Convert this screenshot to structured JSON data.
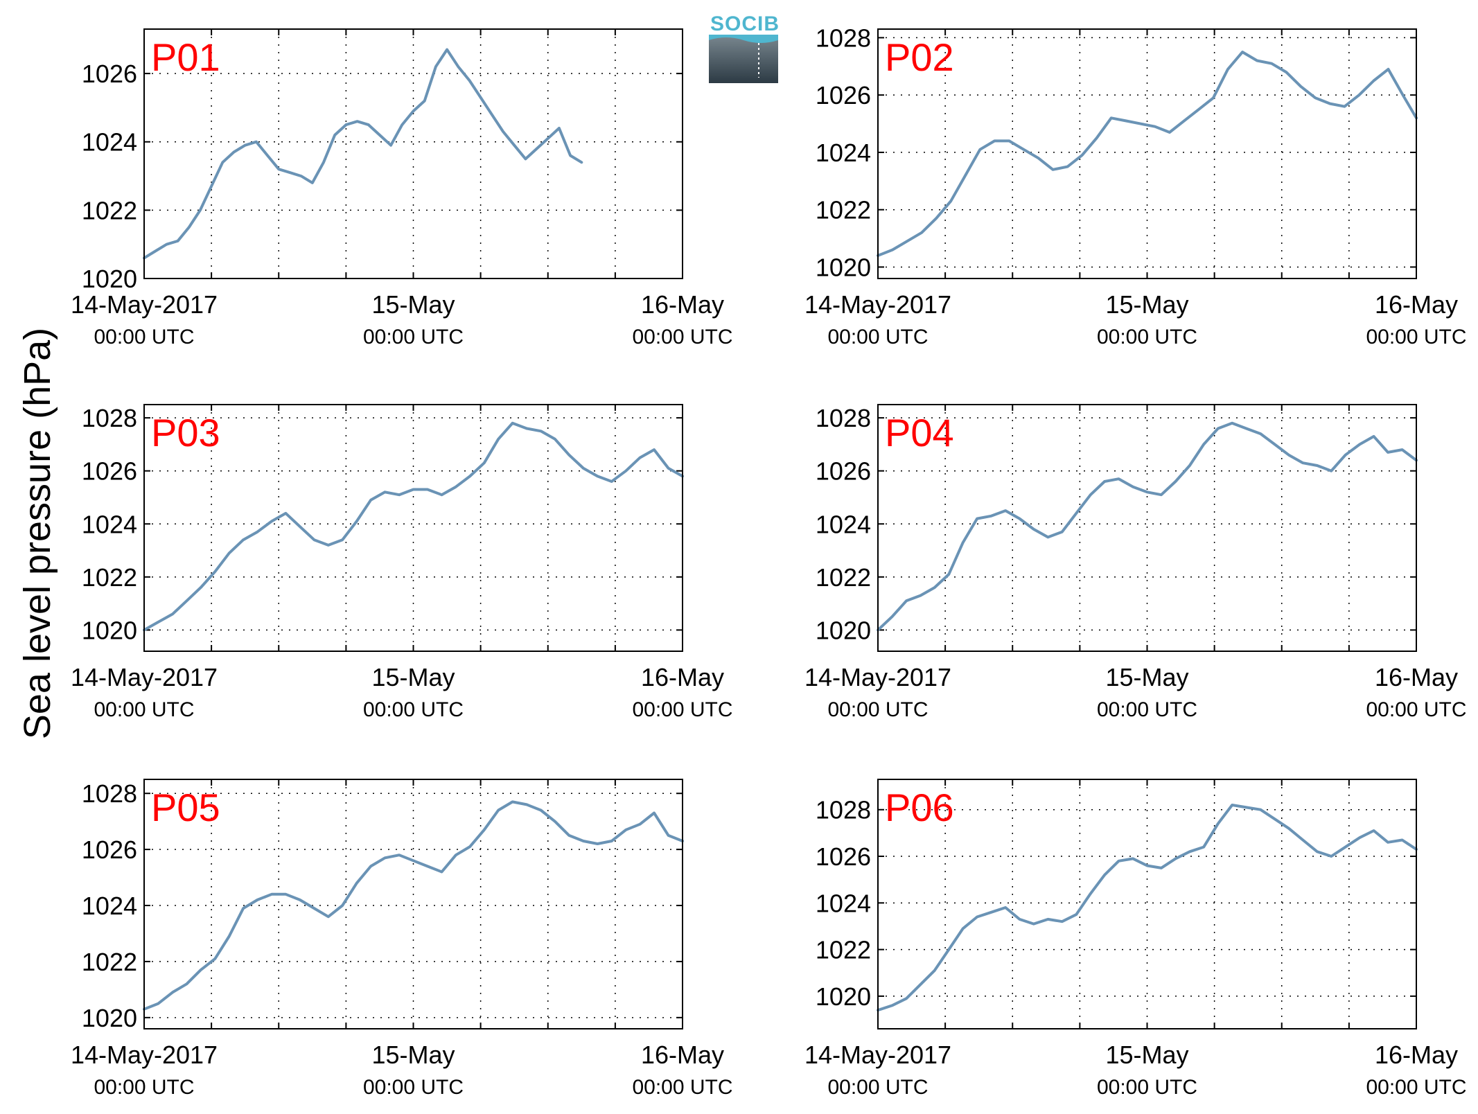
{
  "figure": {
    "ylabel": "Sea level pressure (hPa)",
    "logo_text": "SOCIB",
    "line_color": "#6a93b5",
    "label_color": "#ff0000"
  },
  "chart_data": [
    {
      "type": "line",
      "title": "P01",
      "xlabels": [
        {
          "date": "14-May-2017",
          "time": "00:00 UTC"
        },
        {
          "date": "15-May",
          "time": "00:00 UTC"
        },
        {
          "date": "16-May",
          "time": "00:00 UTC"
        }
      ],
      "xlim": [
        0,
        48
      ],
      "ylim": [
        1020,
        1027.3
      ],
      "yticks": [
        1020,
        1022,
        1024,
        1026
      ],
      "grid": true,
      "x_unit": "hours since 14-May-2017 00:00 UTC",
      "x": [
        0,
        1,
        2,
        3,
        4,
        5,
        6,
        7,
        8,
        9,
        10,
        11,
        12,
        13,
        14,
        15,
        16,
        17,
        18,
        19,
        20,
        21,
        22,
        23,
        24,
        25,
        26,
        27,
        28,
        29,
        30,
        31,
        32,
        33,
        34,
        35,
        36,
        37,
        38,
        39,
        40,
        41,
        42,
        43,
        44,
        45,
        46,
        47,
        48
      ],
      "values": [
        1020.6,
        1020.8,
        1021.0,
        1021.1,
        1021.5,
        1022.0,
        1022.7,
        1023.4,
        1023.7,
        1023.9,
        1024.0,
        1023.6,
        1023.2,
        1023.1,
        1023.0,
        1022.8,
        1023.4,
        1024.2,
        1024.5,
        1024.6,
        1024.5,
        1024.2,
        1023.9,
        1024.5,
        1024.9,
        1025.2,
        1026.2,
        1026.7,
        1026.2,
        1025.8,
        1025.3,
        1024.8,
        1024.3,
        1023.9,
        1023.5,
        1023.8,
        1024.1,
        1024.4,
        1023.6,
        1023.4,
        null,
        null,
        null,
        null,
        null,
        null,
        null,
        null,
        null
      ],
      "xgrid": [
        0,
        6,
        12,
        18,
        24,
        30,
        36,
        42,
        48
      ]
    },
    {
      "type": "line",
      "title": "P02",
      "xlabels": [
        {
          "date": "14-May-2017",
          "time": "00:00 UTC"
        },
        {
          "date": "15-May",
          "time": "00:00 UTC"
        },
        {
          "date": "16-May",
          "time": "00:00 UTC"
        }
      ],
      "xlim": [
        0,
        48
      ],
      "ylim": [
        1019.6,
        1028.3
      ],
      "yticks": [
        1020,
        1022,
        1024,
        1026,
        1028
      ],
      "grid": true,
      "x_unit": "hours since 14-May-2017 00:00 UTC",
      "values": [
        1020.4,
        1020.6,
        1020.9,
        1021.2,
        1021.7,
        1022.3,
        1023.2,
        1024.1,
        1024.4,
        1024.4,
        1024.1,
        1023.8,
        1023.4,
        1023.5,
        1023.9,
        1024.5,
        1025.2,
        1025.1,
        1025.0,
        1024.9,
        1024.7,
        1025.1,
        1025.5,
        1025.9,
        1026.9,
        1027.5,
        1027.2,
        1027.1,
        1026.8,
        1026.3,
        1025.9,
        1025.7,
        1025.6,
        1026.0,
        1026.5,
        1026.9,
        1026.0,
        1025.2
      ],
      "x": [
        0,
        1.3,
        2.6,
        3.9,
        5.2,
        6.5,
        7.8,
        9.1,
        10.4,
        11.7,
        13.0,
        14.3,
        15.6,
        16.9,
        18.2,
        19.5,
        20.8,
        22.1,
        23.4,
        24.7,
        26.0,
        27.3,
        28.6,
        29.9,
        31.2,
        32.5,
        33.8,
        35.1,
        36.4,
        37.7,
        39.0,
        40.3,
        41.6,
        42.9,
        44.2,
        45.5,
        46.8,
        48
      ],
      "xgrid": [
        0,
        6,
        12,
        18,
        24,
        30,
        36,
        42,
        48
      ]
    },
    {
      "type": "line",
      "title": "P03",
      "xlabels": [
        {
          "date": "14-May-2017",
          "time": "00:00 UTC"
        },
        {
          "date": "15-May",
          "time": "00:00 UTC"
        },
        {
          "date": "16-May",
          "time": "00:00 UTC"
        }
      ],
      "xlim": [
        0,
        48
      ],
      "ylim": [
        1019.2,
        1028.5
      ],
      "yticks": [
        1020,
        1022,
        1024,
        1026,
        1028
      ],
      "grid": true,
      "x_unit": "hours since 14-May-2017 00:00 UTC",
      "values": [
        1020.0,
        1020.3,
        1020.6,
        1021.1,
        1021.6,
        1022.2,
        1022.9,
        1023.4,
        1023.7,
        1024.1,
        1024.4,
        1023.9,
        1023.4,
        1023.2,
        1023.4,
        1024.1,
        1024.9,
        1025.2,
        1025.1,
        1025.3,
        1025.3,
        1025.1,
        1025.4,
        1025.8,
        1026.3,
        1027.2,
        1027.8,
        1027.6,
        1027.5,
        1027.2,
        1026.6,
        1026.1,
        1025.8,
        1025.6,
        1026.0,
        1026.5,
        1026.8,
        1026.1,
        1025.8
      ],
      "x": [
        0,
        1.26,
        2.53,
        3.79,
        5.05,
        6.32,
        7.58,
        8.84,
        10.1,
        11.37,
        12.63,
        13.89,
        15.16,
        16.42,
        17.68,
        18.95,
        20.21,
        21.47,
        22.74,
        24.0,
        25.26,
        26.53,
        27.79,
        29.05,
        30.32,
        31.58,
        32.84,
        34.11,
        35.37,
        36.63,
        37.89,
        39.16,
        40.42,
        41.68,
        42.95,
        44.21,
        45.47,
        46.74,
        48
      ],
      "xgrid": [
        0,
        6,
        12,
        18,
        24,
        30,
        36,
        42,
        48
      ]
    },
    {
      "type": "line",
      "title": "P04",
      "xlabels": [
        {
          "date": "14-May-2017",
          "time": "00:00 UTC"
        },
        {
          "date": "15-May",
          "time": "00:00 UTC"
        },
        {
          "date": "16-May",
          "time": "00:00 UTC"
        }
      ],
      "xlim": [
        0,
        48
      ],
      "ylim": [
        1019.2,
        1028.5
      ],
      "yticks": [
        1020,
        1022,
        1024,
        1026,
        1028
      ],
      "grid": true,
      "x_unit": "hours since 14-May-2017 00:00 UTC",
      "values": [
        1020.0,
        1020.5,
        1021.1,
        1021.3,
        1021.6,
        1022.1,
        1023.3,
        1024.2,
        1024.3,
        1024.5,
        1024.2,
        1023.8,
        1023.5,
        1023.7,
        1024.4,
        1025.1,
        1025.6,
        1025.7,
        1025.4,
        1025.2,
        1025.1,
        1025.6,
        1026.2,
        1027.0,
        1027.6,
        1027.8,
        1027.6,
        1027.4,
        1027.0,
        1026.6,
        1026.3,
        1026.2,
        1026.0,
        1026.6,
        1027.0,
        1027.3,
        1026.7,
        1026.8,
        1026.4
      ],
      "x": [
        0,
        1.26,
        2.53,
        3.79,
        5.05,
        6.32,
        7.58,
        8.84,
        10.1,
        11.37,
        12.63,
        13.89,
        15.16,
        16.42,
        17.68,
        18.95,
        20.21,
        21.47,
        22.74,
        24.0,
        25.26,
        26.53,
        27.79,
        29.05,
        30.32,
        31.58,
        32.84,
        34.11,
        35.37,
        36.63,
        37.89,
        39.16,
        40.42,
        41.68,
        42.95,
        44.21,
        45.47,
        46.74,
        48
      ],
      "xgrid": [
        0,
        6,
        12,
        18,
        24,
        30,
        36,
        42,
        48
      ]
    },
    {
      "type": "line",
      "title": "P05",
      "xlabels": [
        {
          "date": "14-May-2017",
          "time": "00:00 UTC"
        },
        {
          "date": "15-May",
          "time": "00:00 UTC"
        },
        {
          "date": "16-May",
          "time": "00:00 UTC"
        }
      ],
      "xlim": [
        0,
        48
      ],
      "ylim": [
        1019.6,
        1028.5
      ],
      "yticks": [
        1020,
        1022,
        1024,
        1026,
        1028
      ],
      "grid": true,
      "x_unit": "hours since 14-May-2017 00:00 UTC",
      "values": [
        1020.3,
        1020.5,
        1020.9,
        1021.2,
        1021.7,
        1022.1,
        1022.9,
        1023.9,
        1024.2,
        1024.4,
        1024.4,
        1024.2,
        1023.9,
        1023.6,
        1024.0,
        1024.8,
        1025.4,
        1025.7,
        1025.8,
        1025.6,
        1025.4,
        1025.2,
        1025.8,
        1026.1,
        1026.7,
        1027.4,
        1027.7,
        1027.6,
        1027.4,
        1027.0,
        1026.5,
        1026.3,
        1026.2,
        1026.3,
        1026.7,
        1026.9,
        1027.3,
        1026.5,
        1026.3
      ],
      "x": [
        0,
        1.26,
        2.53,
        3.79,
        5.05,
        6.32,
        7.58,
        8.84,
        10.1,
        11.37,
        12.63,
        13.89,
        15.16,
        16.42,
        17.68,
        18.95,
        20.21,
        21.47,
        22.74,
        24.0,
        25.26,
        26.53,
        27.79,
        29.05,
        30.32,
        31.58,
        32.84,
        34.11,
        35.37,
        36.63,
        37.89,
        39.16,
        40.42,
        41.68,
        42.95,
        44.21,
        45.47,
        46.74,
        48
      ],
      "xgrid": [
        0,
        6,
        12,
        18,
        24,
        30,
        36,
        42,
        48
      ]
    },
    {
      "type": "line",
      "title": "P06",
      "xlabels": [
        {
          "date": "14-May-2017",
          "time": "00:00 UTC"
        },
        {
          "date": "15-May",
          "time": "00:00 UTC"
        },
        {
          "date": "16-May",
          "time": "00:00 UTC"
        }
      ],
      "xlim": [
        0,
        48
      ],
      "ylim": [
        1018.6,
        1029.3
      ],
      "yticks": [
        1020,
        1022,
        1024,
        1026,
        1028
      ],
      "grid": true,
      "x_unit": "hours since 14-May-2017 00:00 UTC",
      "values": [
        1019.4,
        1019.6,
        1019.9,
        1020.5,
        1021.1,
        1022.0,
        1022.9,
        1023.4,
        1023.6,
        1023.8,
        1023.3,
        1023.1,
        1023.3,
        1023.2,
        1023.5,
        1024.4,
        1025.2,
        1025.8,
        1025.9,
        1025.6,
        1025.5,
        1025.9,
        1026.2,
        1026.4,
        1027.4,
        1028.2,
        1028.1,
        1028.0,
        1027.6,
        1027.2,
        1026.7,
        1026.2,
        1026.0,
        1026.4,
        1026.8,
        1027.1,
        1026.6,
        1026.7,
        1026.3
      ],
      "x": [
        0,
        1.26,
        2.53,
        3.79,
        5.05,
        6.32,
        7.58,
        8.84,
        10.1,
        11.37,
        12.63,
        13.89,
        15.16,
        16.42,
        17.68,
        18.95,
        20.21,
        21.47,
        22.74,
        24.0,
        25.26,
        26.53,
        27.79,
        29.05,
        30.32,
        31.58,
        32.84,
        34.11,
        35.37,
        36.63,
        37.89,
        39.16,
        40.42,
        41.68,
        42.95,
        44.21,
        45.47,
        46.74,
        48
      ],
      "xgrid": [
        0,
        6,
        12,
        18,
        24,
        30,
        36,
        42,
        48
      ]
    }
  ]
}
